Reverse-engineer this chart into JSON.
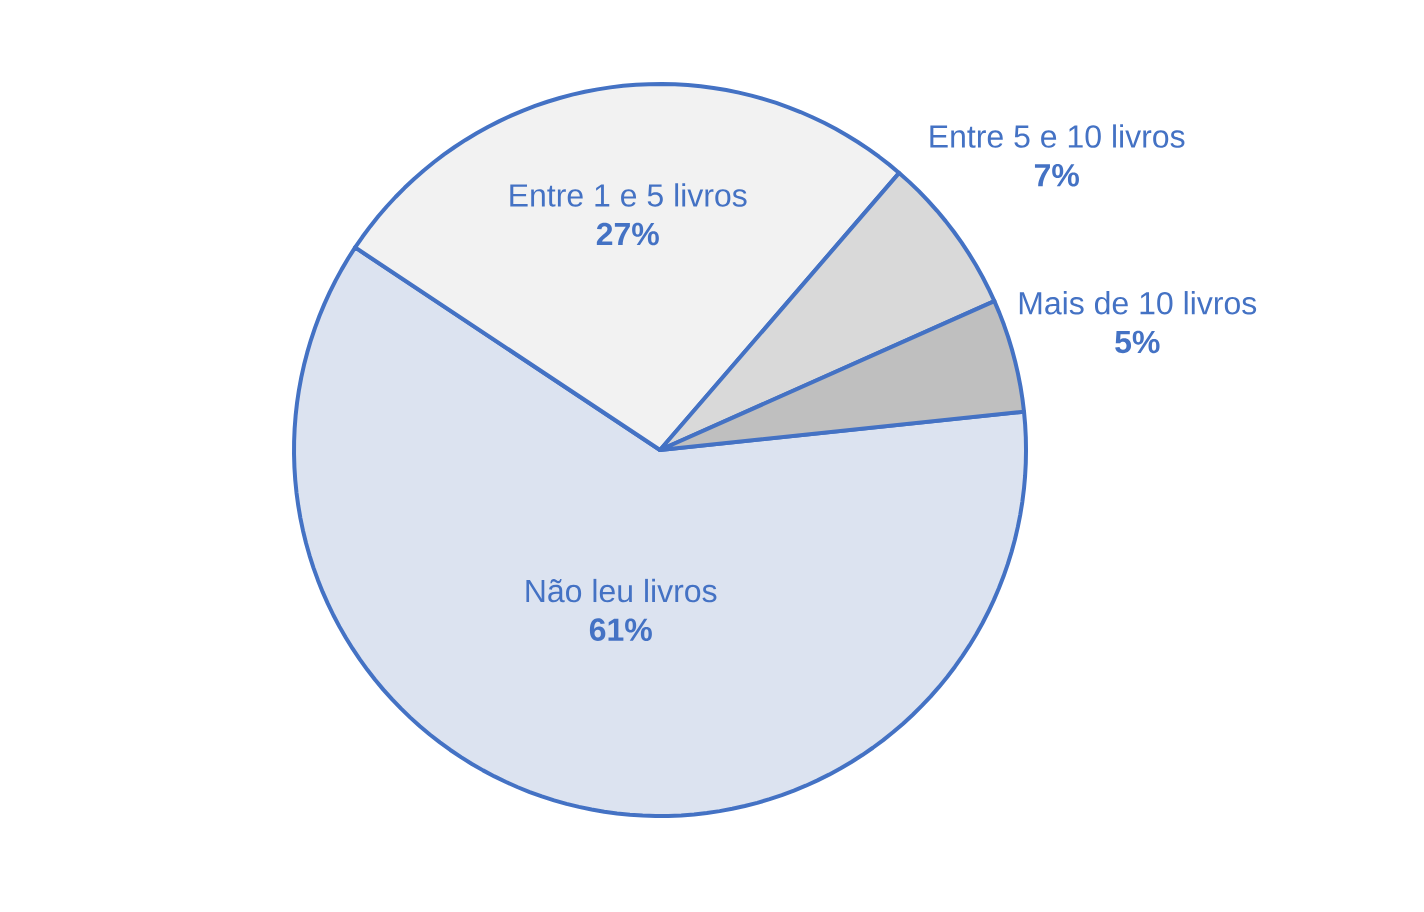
{
  "chart_data": {
    "type": "pie",
    "categories": [
      "Não leu livros",
      "Entre 1 e 5 livros",
      "Entre 5 e 10 livros",
      "Mais de 10 livros"
    ],
    "values": [
      61,
      27,
      7,
      5
    ],
    "value_labels": [
      "61%",
      "27%",
      "7%",
      "5%"
    ],
    "colors": [
      "#dce3f0",
      "#f2f2f2",
      "#d9d9d9",
      "#bfbfbf"
    ]
  }
}
